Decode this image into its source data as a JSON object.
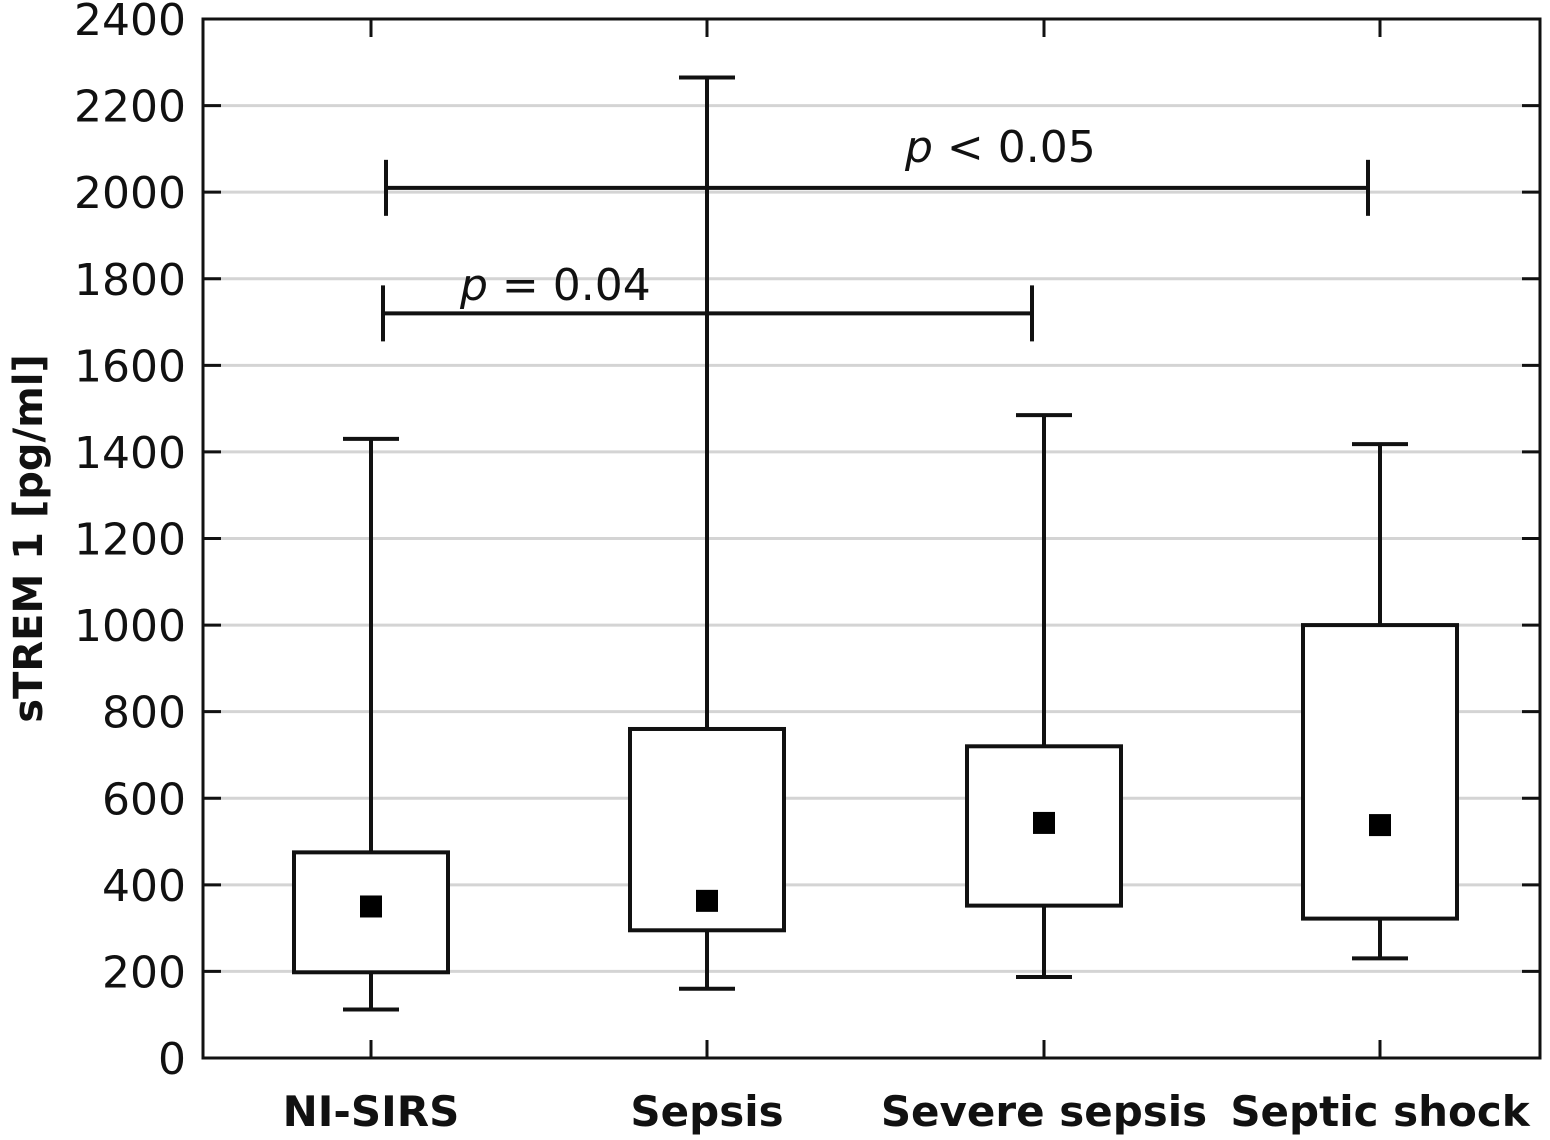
{
  "chart_data": {
    "type": "box",
    "ylabel": "sTREM 1 [pg/ml]",
    "xlabel": "",
    "ylim": [
      0,
      2400
    ],
    "yticks": [
      0,
      200,
      400,
      600,
      800,
      1000,
      1200,
      1400,
      1600,
      1800,
      2000,
      2200,
      2400
    ],
    "grid": "horizontal",
    "categories": [
      "NI-SIRS",
      "Sepsis",
      "Severe sepsis",
      "Septic shock"
    ],
    "boxes": [
      {
        "category": "NI-SIRS",
        "whisker_low": 112,
        "q1": 198,
        "median": 350,
        "q3": 475,
        "whisker_high": 1430
      },
      {
        "category": "Sepsis",
        "whisker_low": 160,
        "q1": 295,
        "median": 363,
        "q3": 760,
        "whisker_high": 2265
      },
      {
        "category": "Severe sepsis",
        "whisker_low": 187,
        "q1": 352,
        "median": 543,
        "q3": 720,
        "whisker_high": 1485
      },
      {
        "category": "Septic shock",
        "whisker_low": 230,
        "q1": 322,
        "median": 538,
        "q3": 1000,
        "whisker_high": 1418
      }
    ],
    "annotations": [
      {
        "p_symbol": "p",
        "rest": " = 0.04",
        "from_category": 0,
        "to_category": 2,
        "level": 1720
      },
      {
        "p_symbol": "p",
        "rest": " < 0.05",
        "from_category": 0,
        "to_category": 3,
        "level": 2010
      }
    ]
  }
}
